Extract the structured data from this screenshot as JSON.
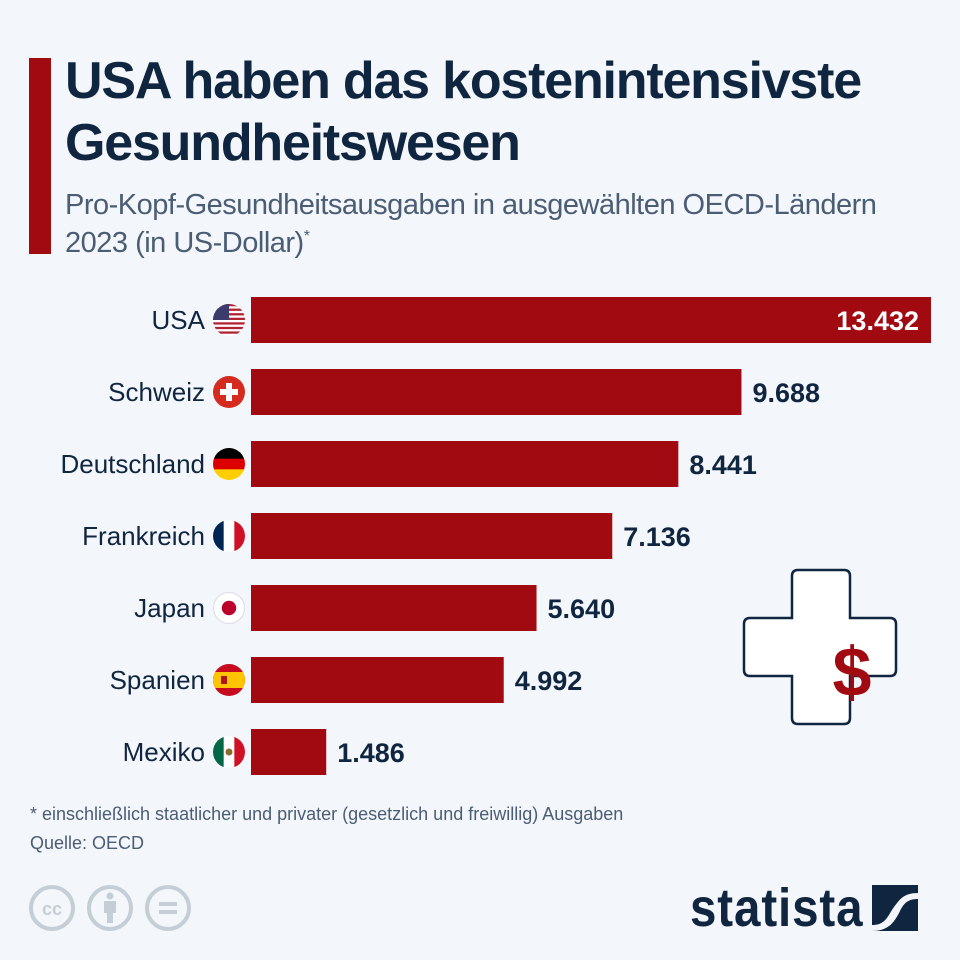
{
  "header": {
    "title": "USA haben das kostenintensivste Gesundheitswesen",
    "subtitle": "Pro-Kopf-Gesundheitsausgaben in ausgewählten OECD-Ländern 2023 (in US-Dollar)",
    "subtitle_marker": "*"
  },
  "chart_data": {
    "type": "bar",
    "orientation": "horizontal",
    "title": "USA haben das kostenintensivste Gesundheitswesen",
    "subtitle": "Pro-Kopf-Gesundheitsausgaben in ausgewählten OECD-Ländern 2023 (in US-Dollar)*",
    "xlabel": "",
    "ylabel": "",
    "categories": [
      "USA",
      "Schweiz",
      "Deutschland",
      "Frankreich",
      "Japan",
      "Spanien",
      "Mexiko"
    ],
    "values": [
      13432,
      9688,
      8441,
      7136,
      5640,
      4992,
      1486
    ],
    "value_labels": [
      "13.432",
      "9.688",
      "8.441",
      "7.136",
      "5.640",
      "4.992",
      "1.486"
    ],
    "flags": [
      "us-flag-icon",
      "switzerland-flag-icon",
      "germany-flag-icon",
      "france-flag-icon",
      "japan-flag-icon",
      "spain-flag-icon",
      "mexico-flag-icon"
    ],
    "xlim": [
      0,
      13432
    ],
    "grid": false,
    "legend": "none",
    "bar_color": "#a10a11",
    "label_color": "#10253f",
    "inside_label_color": "#ffffff"
  },
  "footer": {
    "footnote": "* einschließlich staatlicher und privater (gesetzlich und freiwillig) Ausgaben",
    "source": "Quelle: OECD",
    "brand": "statista",
    "license_icons": [
      "cc-icon",
      "attribution-icon",
      "no-derivatives-icon"
    ]
  },
  "colors": {
    "accent": "#a10a11",
    "text_dark": "#10253f",
    "text_muted": "#4b5d74",
    "background": "#f3f6fa",
    "license_gray": "#c5ced7"
  }
}
